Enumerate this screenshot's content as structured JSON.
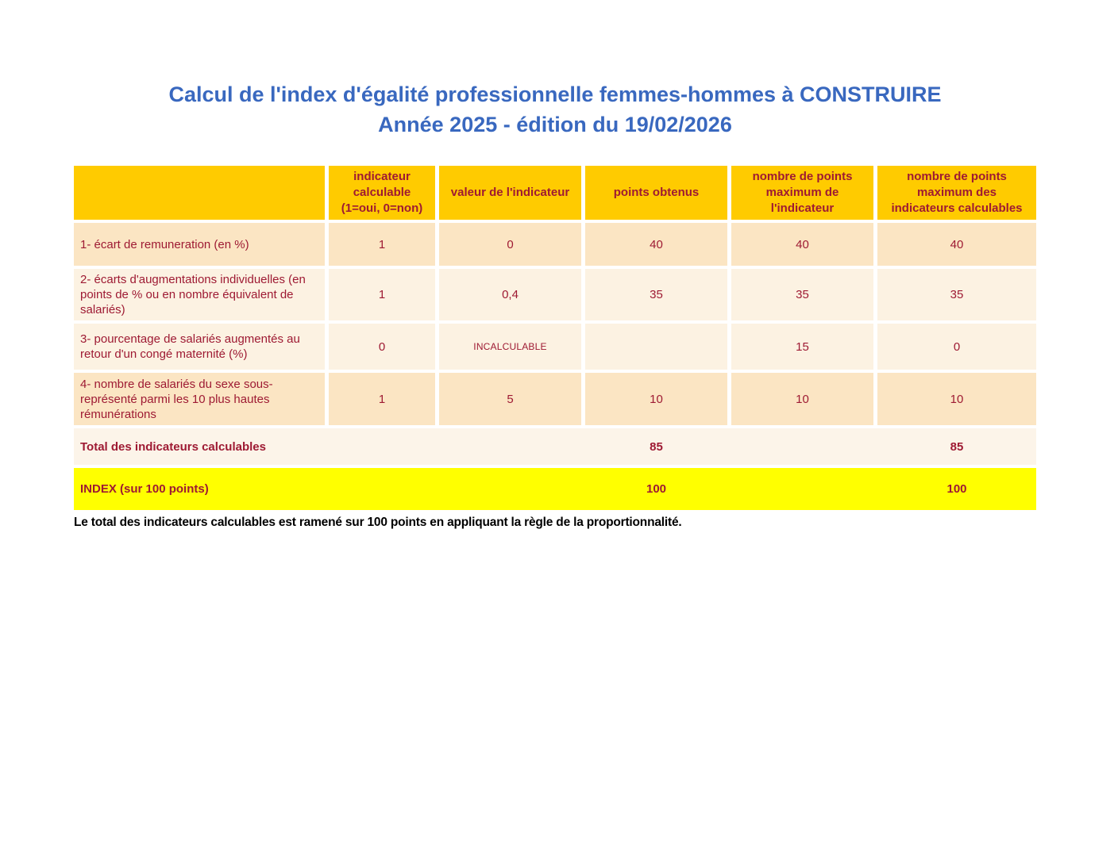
{
  "page": {
    "title_line1": "Calcul de l'index d'égalité professionnelle femmes-hommes à CONSTRUIRE",
    "title_line2": "Année 2025 - édition du 19/02/2026",
    "footnote": "Le total des indicateurs calculables est ramené sur 100 points en appliquant la règle de la proportionnalité."
  },
  "colors": {
    "gold": "#ffcb00",
    "cream-dark": "#fbe5c3",
    "cream-light": "#fcf2e2",
    "cream-total": "#fcf4e9",
    "yellow": "#ffff00",
    "maroon": "#9e1a33",
    "blue": "#3968bf"
  },
  "table": {
    "headers": {
      "indicator_label": "",
      "calculable": "indicateur\ncalculable\n(1=oui, 0=non)",
      "valeur": "valeur de l'indicateur",
      "points": "points obtenus",
      "max_indicateur": "nombre de points\nmaximum de\nl'indicateur",
      "max_calculables": "nombre de points\nmaximum des\nindicateurs calculables"
    },
    "rows": [
      {
        "label": "1- écart de remuneration (en %)",
        "calculable": "1",
        "valeur": "0",
        "points": "40",
        "max_indicateur": "40",
        "max_calculables": "40"
      },
      {
        "label": "2- écarts d'augmentations individuelles (en points de % ou en nombre équivalent de salariés)",
        "calculable": "1",
        "valeur": "0,4",
        "points": "35",
        "max_indicateur": "35",
        "max_calculables": "35"
      },
      {
        "label": "3- pourcentage de salariés augmentés au retour d'un congé maternité (%)",
        "calculable": "0",
        "valeur": "INCALCULABLE",
        "points": "",
        "max_indicateur": "15",
        "max_calculables": "0"
      },
      {
        "label": "4- nombre de salariés du sexe sous-représenté parmi les 10 plus hautes rémunérations",
        "calculable": "1",
        "valeur": "5",
        "points": "10",
        "max_indicateur": "10",
        "max_calculables": "10"
      }
    ],
    "total_row": {
      "label": "Total des indicateurs calculables",
      "points": "85",
      "max_calculables": "85"
    },
    "index_row": {
      "label": "INDEX (sur 100 points)",
      "points": "100",
      "max_calculables": "100"
    }
  }
}
